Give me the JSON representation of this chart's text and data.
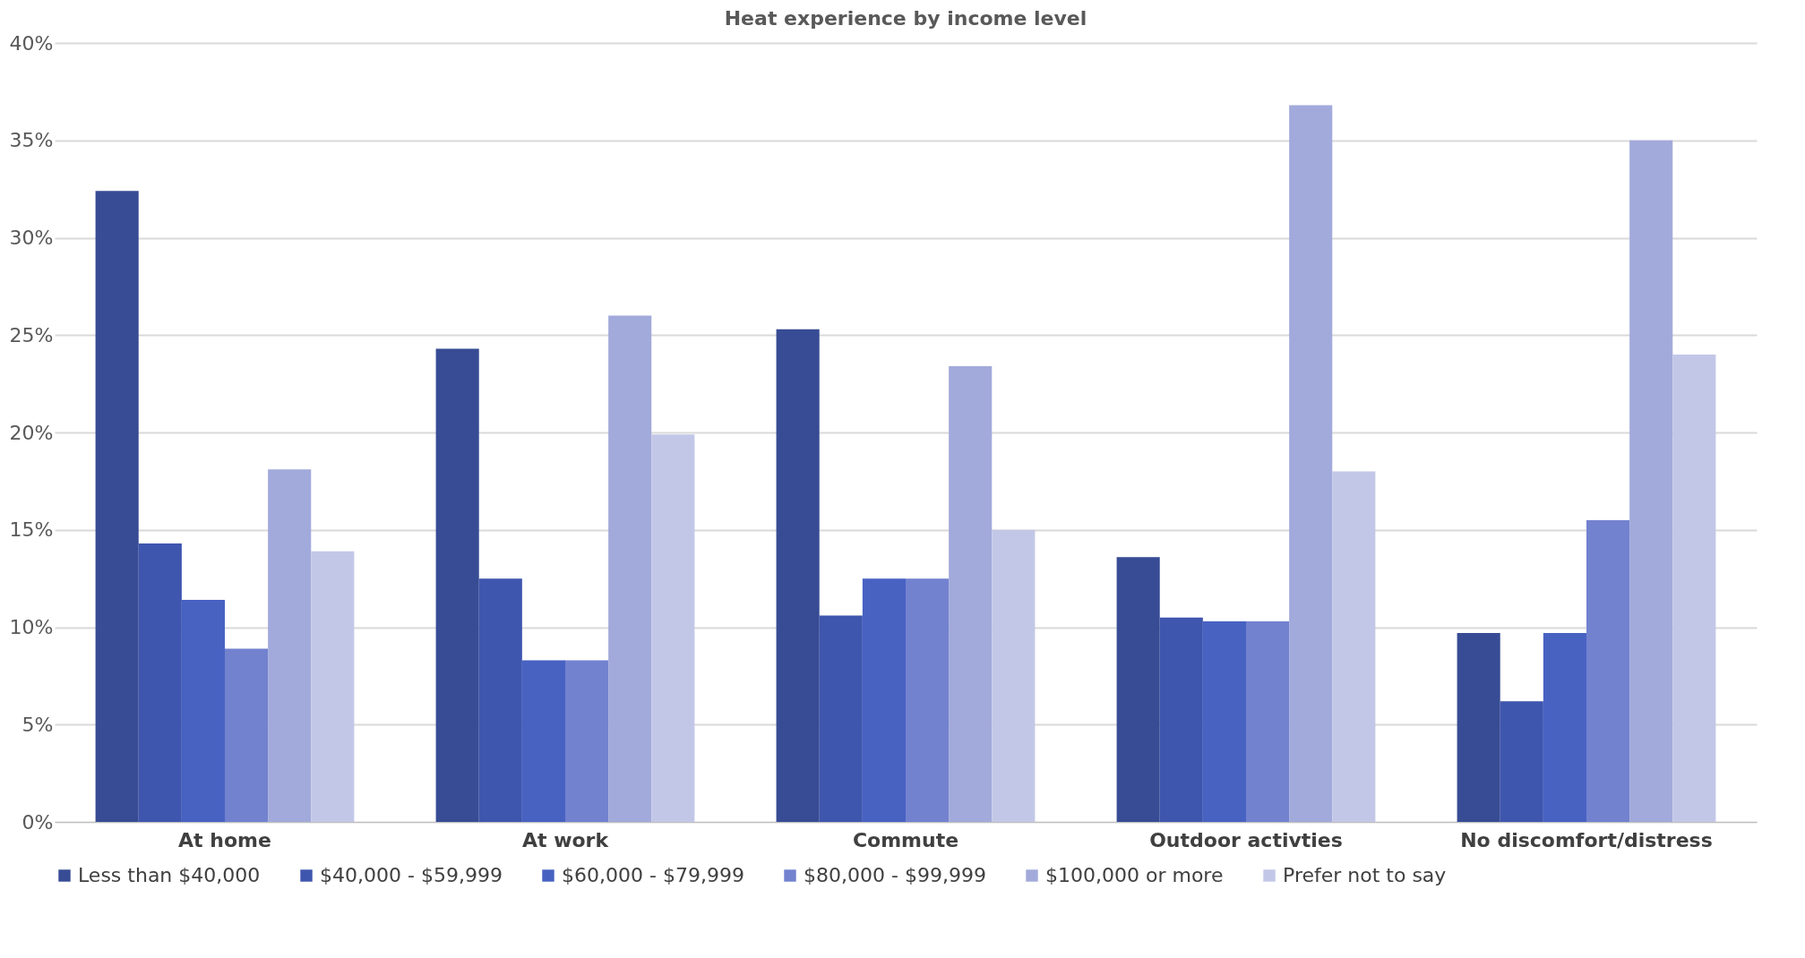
{
  "chart_data": {
    "type": "bar",
    "title": "Heat experience by income level",
    "categories": [
      "At home",
      "At work",
      "Commute",
      "Outdoor activties",
      "No discomfort/distress"
    ],
    "series": [
      {
        "name": "Less than $40,000",
        "color": "#374c94",
        "values": [
          32.4,
          24.3,
          25.3,
          13.6,
          9.7
        ]
      },
      {
        "name": "$40,000 - $59,999",
        "color": "#3f56ae",
        "values": [
          14.3,
          12.5,
          10.6,
          10.5,
          6.2
        ]
      },
      {
        "name": "$60,000 - $79,999",
        "color": "#4862c2",
        "values": [
          11.4,
          8.3,
          12.5,
          10.3,
          9.7
        ]
      },
      {
        "name": "$80,000 - $99,999",
        "color": "#7382cf",
        "values": [
          8.9,
          8.3,
          12.5,
          10.3,
          15.5
        ]
      },
      {
        "name": "$100,000 or more",
        "color": "#a2aadb",
        "values": [
          18.1,
          26.0,
          23.4,
          36.8,
          35.0
        ]
      },
      {
        "name": "Prefer not to say",
        "color": "#c3c7e7",
        "values": [
          13.9,
          19.9,
          15.0,
          18.0,
          24.0
        ]
      }
    ],
    "ylim": [
      0,
      40
    ],
    "yticks": [
      {
        "value": 0,
        "label": "0%"
      },
      {
        "value": 5,
        "label": "5%"
      },
      {
        "value": 10,
        "label": "10%"
      },
      {
        "value": 15,
        "label": "15%"
      },
      {
        "value": 20,
        "label": "20%"
      },
      {
        "value": 25,
        "label": "25%"
      },
      {
        "value": 30,
        "label": "30%"
      },
      {
        "value": 35,
        "label": "35%"
      },
      {
        "value": 40,
        "label": "40%"
      }
    ],
    "grid": "y",
    "legend": "bottom"
  }
}
